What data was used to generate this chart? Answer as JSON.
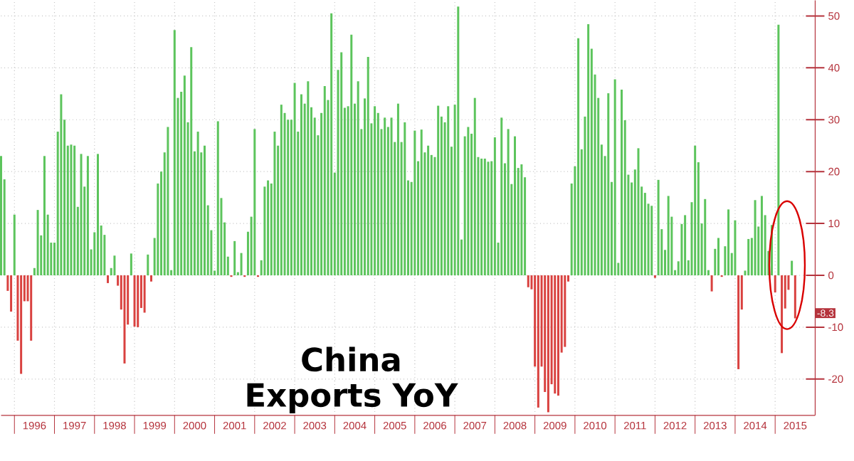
{
  "chart_data": {
    "type": "bar",
    "title": "China Exports YoY",
    "x": [
      "1995-09",
      "1995-10",
      "1995-11",
      "1995-12",
      "1996-01",
      "1996-02",
      "1996-03",
      "1996-04",
      "1996-05",
      "1996-06",
      "1996-07",
      "1996-08",
      "1996-09",
      "1996-10",
      "1996-11",
      "1996-12",
      "1997-01",
      "1997-02",
      "1997-03",
      "1997-04",
      "1997-05",
      "1997-06",
      "1997-07",
      "1997-08",
      "1997-09",
      "1997-10",
      "1997-11",
      "1997-12",
      "1998-01",
      "1998-02",
      "1998-03",
      "1998-04",
      "1998-05",
      "1998-06",
      "1998-07",
      "1998-08",
      "1998-09",
      "1998-10",
      "1998-11",
      "1998-12",
      "1999-01",
      "1999-02",
      "1999-03",
      "1999-04",
      "1999-05",
      "1999-06",
      "1999-07",
      "1999-08",
      "1999-09",
      "1999-10",
      "1999-11",
      "1999-12",
      "2000-01",
      "2000-02",
      "2000-03",
      "2000-04",
      "2000-05",
      "2000-06",
      "2000-07",
      "2000-08",
      "2000-09",
      "2000-10",
      "2000-11",
      "2000-12",
      "2001-01",
      "2001-02",
      "2001-03",
      "2001-04",
      "2001-05",
      "2001-06",
      "2001-07",
      "2001-08",
      "2001-09",
      "2001-10",
      "2001-11",
      "2001-12",
      "2002-01",
      "2002-02",
      "2002-03",
      "2002-04",
      "2002-05",
      "2002-06",
      "2002-07",
      "2002-08",
      "2002-09",
      "2002-10",
      "2002-11",
      "2002-12",
      "2003-01",
      "2003-02",
      "2003-03",
      "2003-04",
      "2003-05",
      "2003-06",
      "2003-07",
      "2003-08",
      "2003-09",
      "2003-10",
      "2003-11",
      "2003-12",
      "2004-01",
      "2004-02",
      "2004-03",
      "2004-04",
      "2004-05",
      "2004-06",
      "2004-07",
      "2004-08",
      "2004-09",
      "2004-10",
      "2004-11",
      "2004-12",
      "2005-01",
      "2005-02",
      "2005-03",
      "2005-04",
      "2005-05",
      "2005-06",
      "2005-07",
      "2005-08",
      "2005-09",
      "2005-10",
      "2005-11",
      "2005-12",
      "2006-01",
      "2006-02",
      "2006-03",
      "2006-04",
      "2006-05",
      "2006-06",
      "2006-07",
      "2006-08",
      "2006-09",
      "2006-10",
      "2006-11",
      "2006-12",
      "2007-01",
      "2007-02",
      "2007-03",
      "2007-04",
      "2007-05",
      "2007-06",
      "2007-07",
      "2007-08",
      "2007-09",
      "2007-10",
      "2007-11",
      "2007-12",
      "2008-01",
      "2008-02",
      "2008-03",
      "2008-04",
      "2008-05",
      "2008-06",
      "2008-07",
      "2008-08",
      "2008-09",
      "2008-10",
      "2008-11",
      "2008-12",
      "2009-01",
      "2009-02",
      "2009-03",
      "2009-04",
      "2009-05",
      "2009-06",
      "2009-07",
      "2009-08",
      "2009-09",
      "2009-10",
      "2009-11",
      "2009-12",
      "2010-01",
      "2010-02",
      "2010-03",
      "2010-04",
      "2010-05",
      "2010-06",
      "2010-07",
      "2010-08",
      "2010-09",
      "2010-10",
      "2010-11",
      "2010-12",
      "2011-01",
      "2011-02",
      "2011-03",
      "2011-04",
      "2011-05",
      "2011-06",
      "2011-07",
      "2011-08",
      "2011-09",
      "2011-10",
      "2011-11",
      "2011-12",
      "2012-01",
      "2012-02",
      "2012-03",
      "2012-04",
      "2012-05",
      "2012-06",
      "2012-07",
      "2012-08",
      "2012-09",
      "2012-10",
      "2012-11",
      "2012-12",
      "2013-01",
      "2013-02",
      "2013-03",
      "2013-04",
      "2013-05",
      "2013-06",
      "2013-07",
      "2013-08",
      "2013-09",
      "2013-10",
      "2013-11",
      "2013-12",
      "2014-01",
      "2014-02",
      "2014-03",
      "2014-04",
      "2014-05",
      "2014-06",
      "2014-07",
      "2014-08",
      "2014-09",
      "2014-10",
      "2014-11",
      "2014-12",
      "2015-01",
      "2015-02",
      "2015-03",
      "2015-04",
      "2015-05",
      "2015-06",
      "2015-07"
    ],
    "values": [
      23,
      18.5,
      -3,
      -7,
      11.7,
      -12.6,
      -19,
      -5,
      -5,
      -12.6,
      1.4,
      12.6,
      7.7,
      23,
      11.7,
      6.3,
      6.3,
      27.7,
      34.9,
      30,
      25,
      25.2,
      25,
      13.2,
      23.4,
      17.1,
      23,
      5,
      8.3,
      23.4,
      9.6,
      7.8,
      -1.5,
      1.4,
      3.8,
      -2,
      -6.6,
      -17,
      -9.5,
      4.2,
      -9.9,
      -10,
      -6.3,
      -7.2,
      4,
      -1.2,
      7.2,
      17.7,
      20,
      23.7,
      28.6,
      1,
      47.3,
      34.2,
      35.4,
      38.5,
      29.5,
      44,
      23.9,
      27.7,
      23.7,
      25,
      13.5,
      8.7,
      0.9,
      29.7,
      14.9,
      10.2,
      3.6,
      -0.3,
      6.6,
      0.6,
      4.3,
      -0.3,
      8.4,
      11.3,
      28.2,
      -0.3,
      2.9,
      17.1,
      18.3,
      17.7,
      27.7,
      25,
      32.9,
      31.3,
      30,
      30,
      37.1,
      27.7,
      34.9,
      33.1,
      37.4,
      32.4,
      30.4,
      27,
      31.3,
      36.5,
      33.8,
      50.5,
      19.8,
      39.6,
      43,
      32.3,
      32.6,
      46.4,
      33.1,
      37.4,
      28.2,
      34.1,
      42.1,
      29.3,
      32.6,
      31.3,
      28.2,
      30.4,
      28.6,
      30.4,
      25.7,
      33.1,
      25.7,
      29.5,
      18.3,
      18,
      27.9,
      22,
      28.1,
      23.7,
      25,
      23.2,
      22.8,
      32.7,
      30.6,
      29.5,
      32.6,
      24.8,
      32.9,
      51.8,
      6.9,
      26.8,
      28.6,
      27.3,
      34.2,
      22.8,
      22.5,
      22.5,
      21.9,
      22,
      26.6,
      6.3,
      30.4,
      21.6,
      28.2,
      17.6,
      26.8,
      20.7,
      21.4,
      18.9,
      -2.3,
      -2.7,
      -17.6,
      -25.5,
      -17.6,
      -22.5,
      -26.4,
      -21,
      -22.8,
      -23.2,
      -14.9,
      -13.8,
      -1.2,
      17.7,
      21,
      45.7,
      24.3,
      30.6,
      48.4,
      43.7,
      38.7,
      34.2,
      25.2,
      23,
      35.1,
      18,
      37.8,
      2.4,
      35.8,
      29.9,
      19.4,
      17.9,
      20.4,
      24.5,
      17.1,
      15.9,
      13.8,
      13.4,
      -0.5,
      18.4,
      8.9,
      4.9,
      15.3,
      11.3,
      1,
      2.7,
      9.9,
      11.6,
      2.9,
      14.1,
      25,
      21.8,
      10,
      14.7,
      1,
      -3.1,
      5.1,
      7.2,
      -0.3,
      5.6,
      12.7,
      4.3,
      10.6,
      -18.1,
      -6.6,
      0.9,
      7,
      7.2,
      14.5,
      9.4,
      15.3,
      11.6,
      4.7,
      9.7,
      -3.3,
      48.3,
      -15,
      -6.4,
      -2.8,
      2.8,
      -8.3
    ],
    "colors": [
      "#5cc45c",
      "#5cc45c",
      "#d9413f",
      "#d9413f",
      "#5cc45c",
      "#d9413f",
      "#d9413f",
      "#d9413f",
      "#d9413f",
      "#d9413f",
      "#5cc45c",
      "#5cc45c",
      "#5cc45c",
      "#5cc45c",
      "#5cc45c",
      "#5cc45c",
      "#5cc45c",
      "#5cc45c",
      "#5cc45c",
      "#5cc45c",
      "#5cc45c",
      "#5cc45c",
      "#5cc45c",
      "#5cc45c",
      "#5cc45c",
      "#5cc45c",
      "#5cc45c",
      "#5cc45c",
      "#5cc45c",
      "#5cc45c",
      "#5cc45c",
      "#5cc45c",
      "#d9413f",
      "#5cc45c",
      "#5cc45c",
      "#d9413f",
      "#d9413f",
      "#d9413f",
      "#d9413f",
      "#5cc45c",
      "#d9413f",
      "#d9413f",
      "#d9413f",
      "#d9413f",
      "#5cc45c",
      "#d9413f",
      "#5cc45c",
      "#5cc45c",
      "#5cc45c",
      "#5cc45c",
      "#5cc45c",
      "#5cc45c",
      "#5cc45c",
      "#5cc45c",
      "#5cc45c",
      "#5cc45c",
      "#5cc45c",
      "#5cc45c",
      "#5cc45c",
      "#5cc45c",
      "#5cc45c",
      "#5cc45c",
      "#5cc45c",
      "#5cc45c",
      "#5cc45c",
      "#5cc45c",
      "#5cc45c",
      "#5cc45c",
      "#5cc45c",
      "#d9413f",
      "#5cc45c",
      "#5cc45c",
      "#5cc45c",
      "#d9413f",
      "#5cc45c",
      "#5cc45c",
      "#5cc45c",
      "#d9413f",
      "#5cc45c",
      "#5cc45c",
      "#5cc45c",
      "#5cc45c",
      "#5cc45c",
      "#5cc45c",
      "#5cc45c",
      "#5cc45c",
      "#5cc45c",
      "#5cc45c",
      "#5cc45c",
      "#5cc45c",
      "#5cc45c",
      "#5cc45c",
      "#5cc45c",
      "#5cc45c",
      "#5cc45c",
      "#5cc45c",
      "#5cc45c",
      "#5cc45c",
      "#5cc45c",
      "#5cc45c",
      "#5cc45c",
      "#5cc45c",
      "#5cc45c",
      "#5cc45c",
      "#5cc45c",
      "#5cc45c",
      "#5cc45c",
      "#5cc45c",
      "#5cc45c",
      "#5cc45c",
      "#5cc45c",
      "#5cc45c",
      "#5cc45c",
      "#5cc45c",
      "#5cc45c",
      "#5cc45c",
      "#5cc45c",
      "#5cc45c",
      "#5cc45c",
      "#5cc45c",
      "#5cc45c",
      "#5cc45c",
      "#5cc45c",
      "#5cc45c",
      "#5cc45c",
      "#5cc45c",
      "#5cc45c",
      "#5cc45c",
      "#5cc45c",
      "#5cc45c",
      "#5cc45c",
      "#5cc45c",
      "#5cc45c",
      "#5cc45c",
      "#5cc45c",
      "#5cc45c",
      "#5cc45c",
      "#5cc45c",
      "#5cc45c",
      "#5cc45c",
      "#5cc45c",
      "#5cc45c",
      "#5cc45c",
      "#5cc45c",
      "#5cc45c",
      "#5cc45c",
      "#5cc45c",
      "#5cc45c",
      "#5cc45c",
      "#5cc45c",
      "#5cc45c",
      "#5cc45c",
      "#5cc45c",
      "#5cc45c",
      "#5cc45c",
      "#5cc45c",
      "#5cc45c",
      "#5cc45c",
      "#d9413f",
      "#d9413f",
      "#d9413f",
      "#d9413f",
      "#d9413f",
      "#d9413f",
      "#d9413f",
      "#d9413f",
      "#d9413f",
      "#d9413f",
      "#d9413f",
      "#d9413f",
      "#d9413f",
      "#5cc45c",
      "#5cc45c",
      "#5cc45c",
      "#5cc45c",
      "#5cc45c",
      "#5cc45c",
      "#5cc45c",
      "#5cc45c",
      "#5cc45c",
      "#5cc45c",
      "#5cc45c",
      "#5cc45c",
      "#5cc45c",
      "#5cc45c",
      "#5cc45c",
      "#5cc45c",
      "#5cc45c",
      "#5cc45c",
      "#5cc45c",
      "#5cc45c",
      "#5cc45c",
      "#5cc45c",
      "#5cc45c",
      "#5cc45c",
      "#5cc45c",
      "#d9413f",
      "#5cc45c",
      "#5cc45c",
      "#5cc45c",
      "#5cc45c",
      "#5cc45c",
      "#5cc45c",
      "#5cc45c",
      "#5cc45c",
      "#5cc45c",
      "#5cc45c",
      "#5cc45c",
      "#5cc45c",
      "#5cc45c",
      "#5cc45c",
      "#5cc45c",
      "#5cc45c",
      "#d9413f",
      "#5cc45c",
      "#5cc45c",
      "#d9413f",
      "#5cc45c",
      "#5cc45c",
      "#5cc45c",
      "#5cc45c",
      "#d9413f",
      "#d9413f",
      "#5cc45c",
      "#5cc45c",
      "#5cc45c",
      "#5cc45c",
      "#5cc45c",
      "#5cc45c",
      "#5cc45c",
      "#5cc45c",
      "#5cc45c",
      "#d9413f",
      "#5cc45c",
      "#d9413f",
      "#d9413f",
      "#d9413f",
      "#5cc45c",
      "#d9413f"
    ],
    "xlim": [
      "1995-09",
      "2016-01"
    ],
    "xticks": [
      {
        "value": "1996-01",
        "label": null
      },
      {
        "value": "1997-01",
        "label": null
      },
      {
        "value": "1998-01",
        "label": null
      },
      {
        "value": "1999-01",
        "label": null
      },
      {
        "value": "2000-01",
        "label": null
      },
      {
        "value": "2001-01",
        "label": null
      },
      {
        "value": "2002-01",
        "label": null
      },
      {
        "value": "2003-01",
        "label": null
      },
      {
        "value": "2004-01",
        "label": null
      },
      {
        "value": "2005-01",
        "label": null
      },
      {
        "value": "2006-01",
        "label": null
      },
      {
        "value": "2007-01",
        "label": null
      },
      {
        "value": "2008-01",
        "label": null
      },
      {
        "value": "2009-01",
        "label": null
      },
      {
        "value": "2010-01",
        "label": null
      },
      {
        "value": "2011-01",
        "label": null
      },
      {
        "value": "2012-01",
        "label": null
      },
      {
        "value": "2013-01",
        "label": null
      },
      {
        "value": "2014-01",
        "label": null
      },
      {
        "value": "2015-01",
        "label": null
      },
      {
        "value": "1996-07",
        "label": "1996"
      },
      {
        "value": "1997-07",
        "label": "1997"
      },
      {
        "value": "1998-07",
        "label": "1998"
      },
      {
        "value": "1999-07",
        "label": "1999"
      },
      {
        "value": "2000-07",
        "label": "2000"
      },
      {
        "value": "2001-07",
        "label": "2001"
      },
      {
        "value": "2002-07",
        "label": "2002"
      },
      {
        "value": "2003-07",
        "label": "2003"
      },
      {
        "value": "2004-07",
        "label": "2004"
      },
      {
        "value": "2005-07",
        "label": "2005"
      },
      {
        "value": "2006-07",
        "label": "2006"
      },
      {
        "value": "2007-07",
        "label": "2007"
      },
      {
        "value": "2008-07",
        "label": "2008"
      },
      {
        "value": "2009-07",
        "label": "2009"
      },
      {
        "value": "2010-07",
        "label": "2010"
      },
      {
        "value": "2011-07",
        "label": "2011"
      },
      {
        "value": "2012-07",
        "label": "2012"
      },
      {
        "value": "2013-07",
        "label": "2013"
      },
      {
        "value": "2014-07",
        "label": "2014"
      },
      {
        "value": "2015-07",
        "label": "2015"
      }
    ],
    "ylim": [
      -27,
      53
    ],
    "yticks": [
      -20,
      -10,
      0,
      10,
      20,
      30,
      40,
      50
    ],
    "grid": true,
    "annotations": [
      "-8.3"
    ]
  }
}
